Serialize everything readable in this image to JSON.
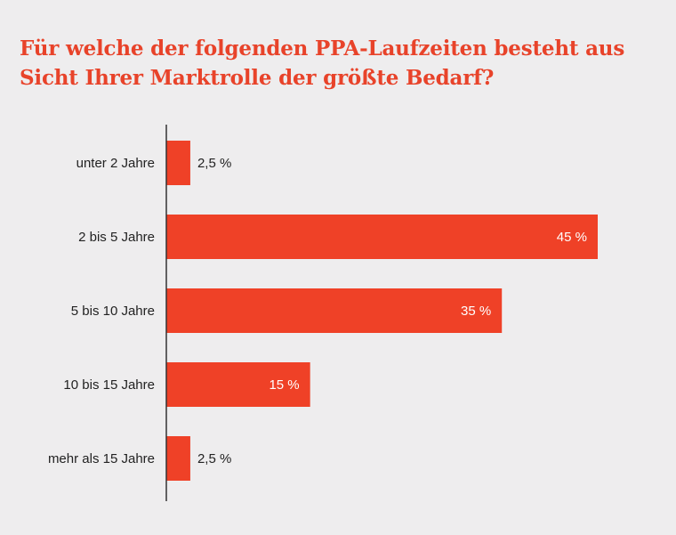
{
  "title_lines": [
    "Für welche der folgenden PPA-Laufzeiten besteht aus",
    "Sicht Ihrer Marktrolle der größte Bedarf?"
  ],
  "colors": {
    "bar": "#ef4127",
    "title": "#e8432a",
    "background": "#eeedee",
    "axis": "#333333",
    "label_inside": "#ffffff",
    "label_outside": "#222222"
  },
  "chart_data": {
    "type": "bar",
    "orientation": "horizontal",
    "title": "Für welche der folgenden PPA-Laufzeiten besteht aus Sicht Ihrer Marktrolle der größte Bedarf?",
    "categories": [
      "unter 2 Jahre",
      "2 bis 5 Jahre",
      "5 bis 10 Jahre",
      "10 bis 15 Jahre",
      "mehr als 15 Jahre"
    ],
    "values": [
      2.5,
      45,
      35,
      15,
      2.5
    ],
    "value_labels": [
      "2,5 %",
      "45 %",
      "35 %",
      "15 %",
      "2,5 %"
    ],
    "unit": "%",
    "xlim": [
      0,
      50
    ],
    "xlabel": "",
    "ylabel": "",
    "grid": false,
    "legend": false
  }
}
